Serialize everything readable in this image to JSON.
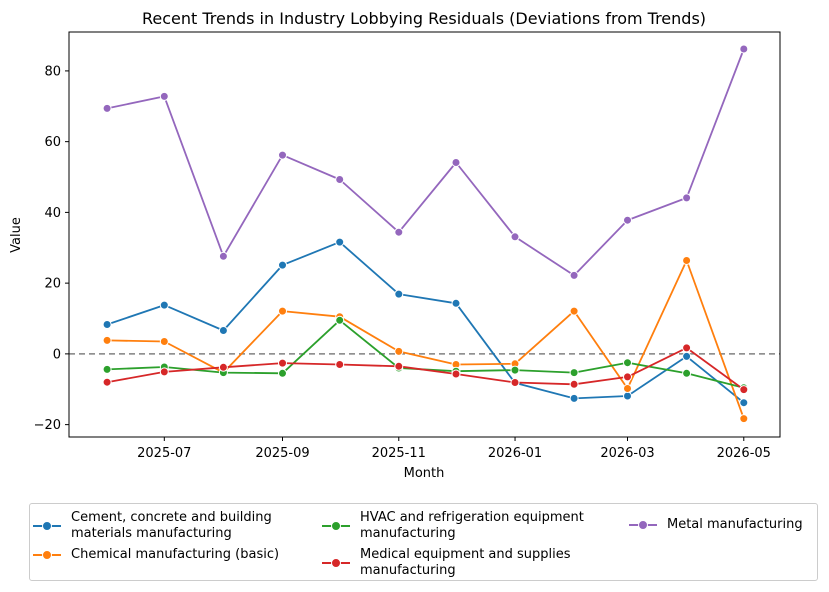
{
  "chart_data": {
    "type": "line",
    "title": "Recent Trends in Industry Lobbying Residuals (Deviations from Trends)",
    "xlabel": "Month",
    "ylabel": "Value",
    "x": [
      "2025-06",
      "2025-07",
      "2025-08",
      "2025-09",
      "2025-10",
      "2025-11",
      "2025-12",
      "2026-01",
      "2026-02",
      "2026-03",
      "2026-04",
      "2026-05"
    ],
    "xticks": [
      "2025-07",
      "2025-09",
      "2025-11",
      "2026-01",
      "2026-03",
      "2026-05"
    ],
    "yticks": [
      -20,
      0,
      20,
      40,
      60,
      80
    ],
    "ylim": [
      -23.5,
      91
    ],
    "xlim": [
      "2025-05-12",
      "2026-05-20"
    ],
    "reference_line": 0,
    "legend_position": "below",
    "series": [
      {
        "name": "Cement, concrete and building\nmaterials manufacturing",
        "color": "#1f77b4",
        "values": [
          8.3,
          13.8,
          6.6,
          25.1,
          31.6,
          16.9,
          14.3,
          -8.2,
          -12.6,
          -11.9,
          -0.7,
          -13.8
        ]
      },
      {
        "name": "Chemical manufacturing (basic)",
        "color": "#ff7f0e",
        "values": [
          3.8,
          3.5,
          -5.3,
          12.1,
          10.5,
          0.7,
          -3.0,
          -2.8,
          12.1,
          -9.8,
          26.4,
          -18.3
        ]
      },
      {
        "name": "HVAC and refrigeration equipment\nmanufacturing",
        "color": "#2ca02c",
        "values": [
          -4.4,
          -3.7,
          -5.3,
          -5.5,
          9.5,
          -4.0,
          -4.9,
          -4.6,
          -5.3,
          -2.5,
          -5.5,
          -9.6
        ]
      },
      {
        "name": "Medical equipment and supplies\nmanufacturing",
        "color": "#d62728",
        "values": [
          -8.0,
          -5.1,
          -3.8,
          -2.6,
          -3.0,
          -3.5,
          -5.7,
          -8.1,
          -8.6,
          -6.5,
          1.7,
          -10.1
        ]
      },
      {
        "name": "Metal manufacturing",
        "color": "#9467bd",
        "values": [
          69.4,
          72.8,
          27.6,
          56.2,
          49.3,
          34.4,
          54.1,
          33.1,
          22.2,
          37.8,
          44.1,
          86.2
        ]
      }
    ]
  }
}
